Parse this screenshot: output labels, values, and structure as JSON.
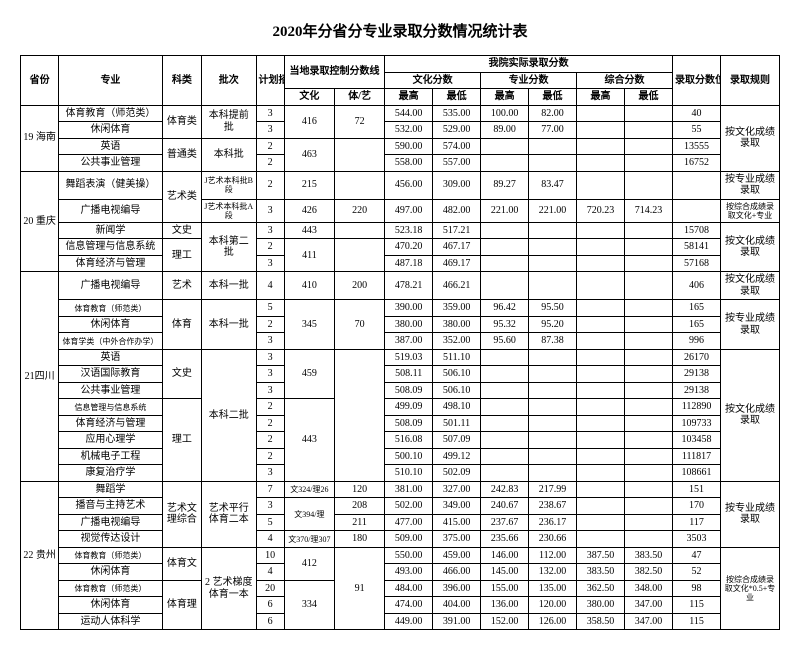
{
  "title": "2020年分省分专业录取分数情况统计表",
  "headers": {
    "province": "省份",
    "major": "专业",
    "subject": "科类",
    "batch": "批次",
    "plan": "计划招生数",
    "local_ctrl": "当地录取控制分数线",
    "local_wen": "文化",
    "local_titi": "体/艺",
    "actual": "我院实际录取分数",
    "culture": "文化分数",
    "prof": "专业分数",
    "comp": "综合分数",
    "hi": "最高",
    "lo": "最低",
    "rank": "录取分数位次值",
    "rule": "录取规则"
  },
  "provinces": {
    "p19": "19\n海南",
    "p20": "20\n重庆",
    "p21": "21四川",
    "p22": "22\n贵州"
  },
  "rows": [
    {
      "major": "体育教育（师范类）",
      "subj": "体育类",
      "batch": "本科提前批",
      "plan": "3",
      "ctrlW": "416",
      "ctrlT": "72",
      "chH": "544.00",
      "chL": "535.00",
      "prH": "100.00",
      "prL": "82.00",
      "coH": "",
      "coL": "",
      "rank": "40",
      "rule": "按文化成绩录取"
    },
    {
      "major": "休闲体育",
      "subj": "",
      "batch": "",
      "plan": "3",
      "ctrlW": "",
      "ctrlT": "",
      "chH": "532.00",
      "chL": "529.00",
      "prH": "89.00",
      "prL": "77.00",
      "coH": "",
      "coL": "",
      "rank": "55",
      "rule": ""
    },
    {
      "major": "英语",
      "subj": "普通类",
      "batch": "本科批",
      "plan": "2",
      "ctrlW": "463",
      "ctrlT": "",
      "chH": "590.00",
      "chL": "574.00",
      "prH": "",
      "prL": "",
      "coH": "",
      "coL": "",
      "rank": "13555",
      "rule": ""
    },
    {
      "major": "公共事业管理",
      "subj": "",
      "batch": "",
      "plan": "2",
      "ctrlW": "",
      "ctrlT": "",
      "chH": "558.00",
      "chL": "557.00",
      "prH": "",
      "prL": "",
      "coH": "",
      "coL": "",
      "rank": "16752",
      "rule": ""
    },
    {
      "major": "舞蹈表演（健美操）",
      "subj": "艺术类",
      "batch": "J艺术本科批B段",
      "plan": "2",
      "ctrlW": "215",
      "ctrlT": "",
      "chH": "456.00",
      "chL": "309.00",
      "prH": "89.27",
      "prL": "83.47",
      "coH": "",
      "coL": "",
      "rank": "",
      "rule": "按专业成绩录取"
    },
    {
      "major": "广播电视编导",
      "subj": "",
      "batch": "J艺术本科批A段",
      "plan": "3",
      "ctrlW": "426",
      "ctrlT": "220",
      "chH": "497.00",
      "chL": "482.00",
      "prH": "221.00",
      "prL": "221.00",
      "coH": "720.23",
      "coL": "714.23",
      "rank": "",
      "rule": "按综合成绩录取文化+专业"
    },
    {
      "major": "新闻学",
      "subj": "文史",
      "batch": "本科第二批",
      "plan": "3",
      "ctrlW": "443",
      "ctrlT": "",
      "chH": "523.18",
      "chL": "517.21",
      "prH": "",
      "prL": "",
      "coH": "",
      "coL": "",
      "rank": "15708",
      "rule": "按文化成绩录取"
    },
    {
      "major": "信息管理与信息系统",
      "subj": "理工",
      "batch": "",
      "plan": "2",
      "ctrlW": "411",
      "ctrlT": "",
      "chH": "470.20",
      "chL": "467.17",
      "prH": "",
      "prL": "",
      "coH": "",
      "coL": "",
      "rank": "58141",
      "rule": ""
    },
    {
      "major": "体育经济与管理",
      "subj": "",
      "batch": "",
      "plan": "3",
      "ctrlW": "",
      "ctrlT": "",
      "chH": "487.18",
      "chL": "469.17",
      "prH": "",
      "prL": "",
      "coH": "",
      "coL": "",
      "rank": "57168",
      "rule": ""
    },
    {
      "major": "广播电视编导",
      "subj": "艺术",
      "batch": "本科一批",
      "plan": "4",
      "ctrlW": "410",
      "ctrlT": "200",
      "chH": "478.21",
      "chL": "466.21",
      "prH": "",
      "prL": "",
      "coH": "",
      "coL": "",
      "rank": "406",
      "rule": "按文化成绩录取"
    },
    {
      "major": "体育教育（师范类）",
      "subj": "体育",
      "batch": "本科一批",
      "plan": "5",
      "ctrlW": "345",
      "ctrlT": "70",
      "chH": "390.00",
      "chL": "359.00",
      "prH": "96.42",
      "prL": "95.50",
      "coH": "",
      "coL": "",
      "rank": "165",
      "rule": "按专业成绩录取"
    },
    {
      "major": "休闲体育",
      "subj": "",
      "batch": "",
      "plan": "2",
      "ctrlW": "",
      "ctrlT": "",
      "chH": "380.00",
      "chL": "380.00",
      "prH": "95.32",
      "prL": "95.20",
      "coH": "",
      "coL": "",
      "rank": "165",
      "rule": ""
    },
    {
      "major": "体育学类（中外合作办学）",
      "subj": "",
      "batch": "",
      "plan": "3",
      "ctrlW": "",
      "ctrlT": "",
      "chH": "387.00",
      "chL": "352.00",
      "prH": "95.60",
      "prL": "87.38",
      "coH": "",
      "coL": "",
      "rank": "996",
      "rule": ""
    },
    {
      "major": "英语",
      "subj": "文史",
      "batch": "本科二批",
      "plan": "3",
      "ctrlW": "459",
      "ctrlT": "",
      "chH": "519.03",
      "chL": "511.10",
      "prH": "",
      "prL": "",
      "coH": "",
      "coL": "",
      "rank": "26170",
      "rule": "按文化成绩录取"
    },
    {
      "major": "汉语国际教育",
      "subj": "",
      "batch": "",
      "plan": "3",
      "ctrlW": "",
      "ctrlT": "",
      "chH": "508.11",
      "chL": "506.10",
      "prH": "",
      "prL": "",
      "coH": "",
      "coL": "",
      "rank": "29138",
      "rule": ""
    },
    {
      "major": "公共事业管理",
      "subj": "",
      "batch": "",
      "plan": "3",
      "ctrlW": "",
      "ctrlT": "",
      "chH": "508.09",
      "chL": "506.10",
      "prH": "",
      "prL": "",
      "coH": "",
      "coL": "",
      "rank": "29138",
      "rule": ""
    },
    {
      "major": "信息管理与信息系统",
      "subj": "理工",
      "batch": "",
      "plan": "2",
      "ctrlW": "443",
      "ctrlT": "",
      "chH": "499.09",
      "chL": "498.10",
      "prH": "",
      "prL": "",
      "coH": "",
      "coL": "",
      "rank": "112890",
      "rule": ""
    },
    {
      "major": "体育经济与管理",
      "subj": "",
      "batch": "",
      "plan": "2",
      "ctrlW": "",
      "ctrlT": "",
      "chH": "508.09",
      "chL": "501.11",
      "prH": "",
      "prL": "",
      "coH": "",
      "coL": "",
      "rank": "109733",
      "rule": ""
    },
    {
      "major": "应用心理学",
      "subj": "",
      "batch": "",
      "plan": "2",
      "ctrlW": "",
      "ctrlT": "",
      "chH": "516.08",
      "chL": "507.09",
      "prH": "",
      "prL": "",
      "coH": "",
      "coL": "",
      "rank": "103458",
      "rule": ""
    },
    {
      "major": "机械电子工程",
      "subj": "",
      "batch": "",
      "plan": "2",
      "ctrlW": "",
      "ctrlT": "",
      "chH": "500.10",
      "chL": "499.12",
      "prH": "",
      "prL": "",
      "coH": "",
      "coL": "",
      "rank": "111817",
      "rule": ""
    },
    {
      "major": "康复治疗学",
      "subj": "",
      "batch": "",
      "plan": "3",
      "ctrlW": "",
      "ctrlT": "",
      "chH": "510.10",
      "chL": "502.09",
      "prH": "",
      "prL": "",
      "coH": "",
      "coL": "",
      "rank": "108661",
      "rule": ""
    },
    {
      "major": "舞蹈学",
      "subj": "艺术文理综合",
      "batch": "艺术平行体育二本",
      "plan": "7",
      "ctrlW": "文324/理26",
      "ctrlT": "120",
      "chH": "381.00",
      "chL": "327.00",
      "prH": "242.83",
      "prL": "217.99",
      "coH": "",
      "coL": "",
      "rank": "151",
      "rule": "按专业成绩录取"
    },
    {
      "major": "播音与主持艺术",
      "subj": "",
      "batch": "",
      "plan": "3",
      "ctrlW": "文394/理",
      "ctrlT": "208",
      "chH": "502.00",
      "chL": "349.00",
      "prH": "240.67",
      "prL": "238.67",
      "coH": "",
      "coL": "",
      "rank": "170",
      "rule": ""
    },
    {
      "major": "广播电视编导",
      "subj": "",
      "batch": "",
      "plan": "5",
      "ctrlW": "326",
      "ctrlT": "211",
      "chH": "477.00",
      "chL": "415.00",
      "prH": "237.67",
      "prL": "236.17",
      "coH": "",
      "coL": "",
      "rank": "117",
      "rule": ""
    },
    {
      "major": "视觉传达设计",
      "subj": "",
      "batch": "",
      "plan": "4",
      "ctrlW": "文370/理307",
      "ctrlT": "180",
      "chH": "509.00",
      "chL": "375.00",
      "prH": "235.66",
      "prL": "230.66",
      "coH": "",
      "coL": "",
      "rank": "3503",
      "rule": ""
    },
    {
      "major": "体育教育（师范类）",
      "subj": "体育文",
      "batch": "2 艺术梯度体育一本",
      "plan": "10",
      "ctrlW": "412",
      "ctrlT": "91",
      "chH": "550.00",
      "chL": "459.00",
      "prH": "146.00",
      "prL": "112.00",
      "coH": "387.50",
      "coL": "383.50",
      "rank": "47",
      "rule": "按综合成绩录取文化*0.5+专业"
    },
    {
      "major": "休闲体育",
      "subj": "",
      "batch": "",
      "plan": "4",
      "ctrlW": "",
      "ctrlT": "",
      "chH": "493.00",
      "chL": "466.00",
      "prH": "145.00",
      "prL": "132.00",
      "coH": "383.50",
      "coL": "382.50",
      "rank": "52",
      "rule": ""
    },
    {
      "major": "体育教育（师范类）",
      "subj": "体育理",
      "batch": "",
      "plan": "20",
      "ctrlW": "334",
      "ctrlT": "",
      "chH": "484.00",
      "chL": "396.00",
      "prH": "155.00",
      "prL": "135.00",
      "coH": "362.50",
      "coL": "348.00",
      "rank": "98",
      "rule": ""
    },
    {
      "major": "休闲体育",
      "subj": "",
      "batch": "",
      "plan": "6",
      "ctrlW": "",
      "ctrlT": "",
      "chH": "474.00",
      "chL": "404.00",
      "prH": "136.00",
      "prL": "120.00",
      "coH": "380.00",
      "coL": "347.00",
      "rank": "115",
      "rule": ""
    },
    {
      "major": "运动人体科学",
      "subj": "",
      "batch": "",
      "plan": "6",
      "ctrlW": "",
      "ctrlT": "",
      "chH": "449.00",
      "chL": "391.00",
      "prH": "152.00",
      "prL": "126.00",
      "coH": "358.50",
      "coL": "347.00",
      "rank": "115",
      "rule": ""
    }
  ]
}
